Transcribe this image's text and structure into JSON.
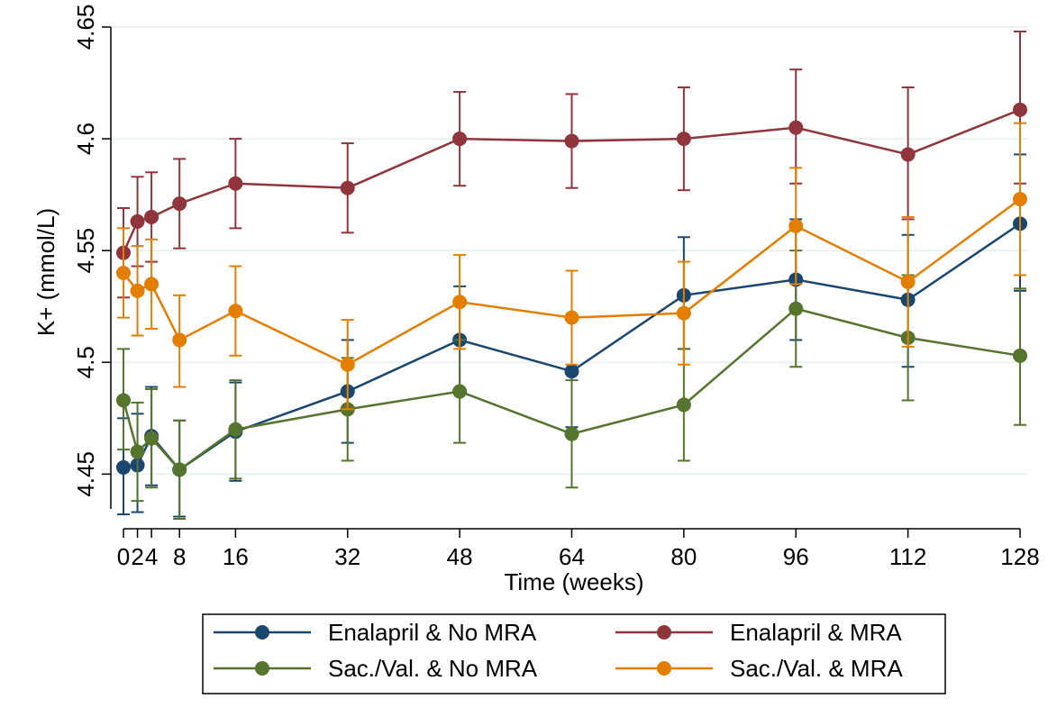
{
  "chart_data": {
    "type": "line",
    "title": "",
    "xlabel": "Time (weeks)",
    "ylabel": "K+ (mmol/L)",
    "x": [
      0,
      2,
      4,
      8,
      16,
      32,
      48,
      64,
      80,
      96,
      112,
      128
    ],
    "xticks": [
      "0",
      "2",
      "4",
      "8",
      "16",
      "32",
      "48",
      "64",
      "80",
      "96",
      "112",
      "128"
    ],
    "yticks": [
      "4.45",
      "4.5",
      "4.55",
      "4.6",
      "4.65"
    ],
    "ylim": [
      4.43,
      4.65
    ],
    "xlim": [
      0,
      128
    ],
    "grid": "horizontal",
    "legend_position": "bottom",
    "series": [
      {
        "name": "Enalapril & No MRA",
        "color": "#1a476f",
        "values": [
          4.453,
          4.454,
          4.467,
          4.452,
          4.469,
          4.487,
          4.51,
          4.496,
          4.53,
          4.537,
          4.528,
          4.562
        ],
        "ci_low": [
          4.432,
          4.433,
          4.445,
          4.431,
          4.447,
          4.464,
          4.487,
          4.471,
          4.506,
          4.51,
          4.498,
          4.532
        ],
        "ci_high": [
          4.475,
          4.477,
          4.489,
          4.474,
          4.491,
          4.51,
          4.534,
          4.519,
          4.556,
          4.564,
          4.557,
          4.593
        ]
      },
      {
        "name": "Enalapril & MRA",
        "color": "#90353b",
        "values": [
          4.549,
          4.563,
          4.565,
          4.571,
          4.58,
          4.578,
          4.6,
          4.599,
          4.6,
          4.605,
          4.593,
          4.613
        ],
        "ci_low": [
          4.529,
          4.543,
          4.545,
          4.551,
          4.56,
          4.558,
          4.579,
          4.578,
          4.577,
          4.58,
          4.564,
          4.58
        ],
        "ci_high": [
          4.569,
          4.583,
          4.585,
          4.591,
          4.6,
          4.598,
          4.621,
          4.62,
          4.623,
          4.631,
          4.623,
          4.648
        ]
      },
      {
        "name": "Sac./Val. & No MRA",
        "color": "#55752f",
        "values": [
          4.483,
          4.46,
          4.466,
          4.452,
          4.47,
          4.479,
          4.487,
          4.468,
          4.481,
          4.524,
          4.511,
          4.503
        ],
        "ci_low": [
          4.461,
          4.438,
          4.444,
          4.43,
          4.448,
          4.456,
          4.464,
          4.444,
          4.456,
          4.498,
          4.483,
          4.472
        ],
        "ci_high": [
          4.506,
          4.482,
          4.488,
          4.474,
          4.492,
          4.502,
          4.51,
          4.492,
          4.506,
          4.55,
          4.539,
          4.533
        ]
      },
      {
        "name": "Sac./Val. & MRA",
        "color": "#e37e00",
        "values": [
          4.54,
          4.532,
          4.535,
          4.51,
          4.523,
          4.499,
          4.527,
          4.52,
          4.522,
          4.561,
          4.536,
          4.573
        ],
        "ci_low": [
          4.52,
          4.512,
          4.515,
          4.489,
          4.503,
          4.479,
          4.506,
          4.499,
          4.499,
          4.535,
          4.507,
          4.539
        ],
        "ci_high": [
          4.56,
          4.552,
          4.555,
          4.53,
          4.543,
          4.519,
          4.548,
          4.541,
          4.545,
          4.587,
          4.565,
          4.607
        ]
      }
    ]
  }
}
